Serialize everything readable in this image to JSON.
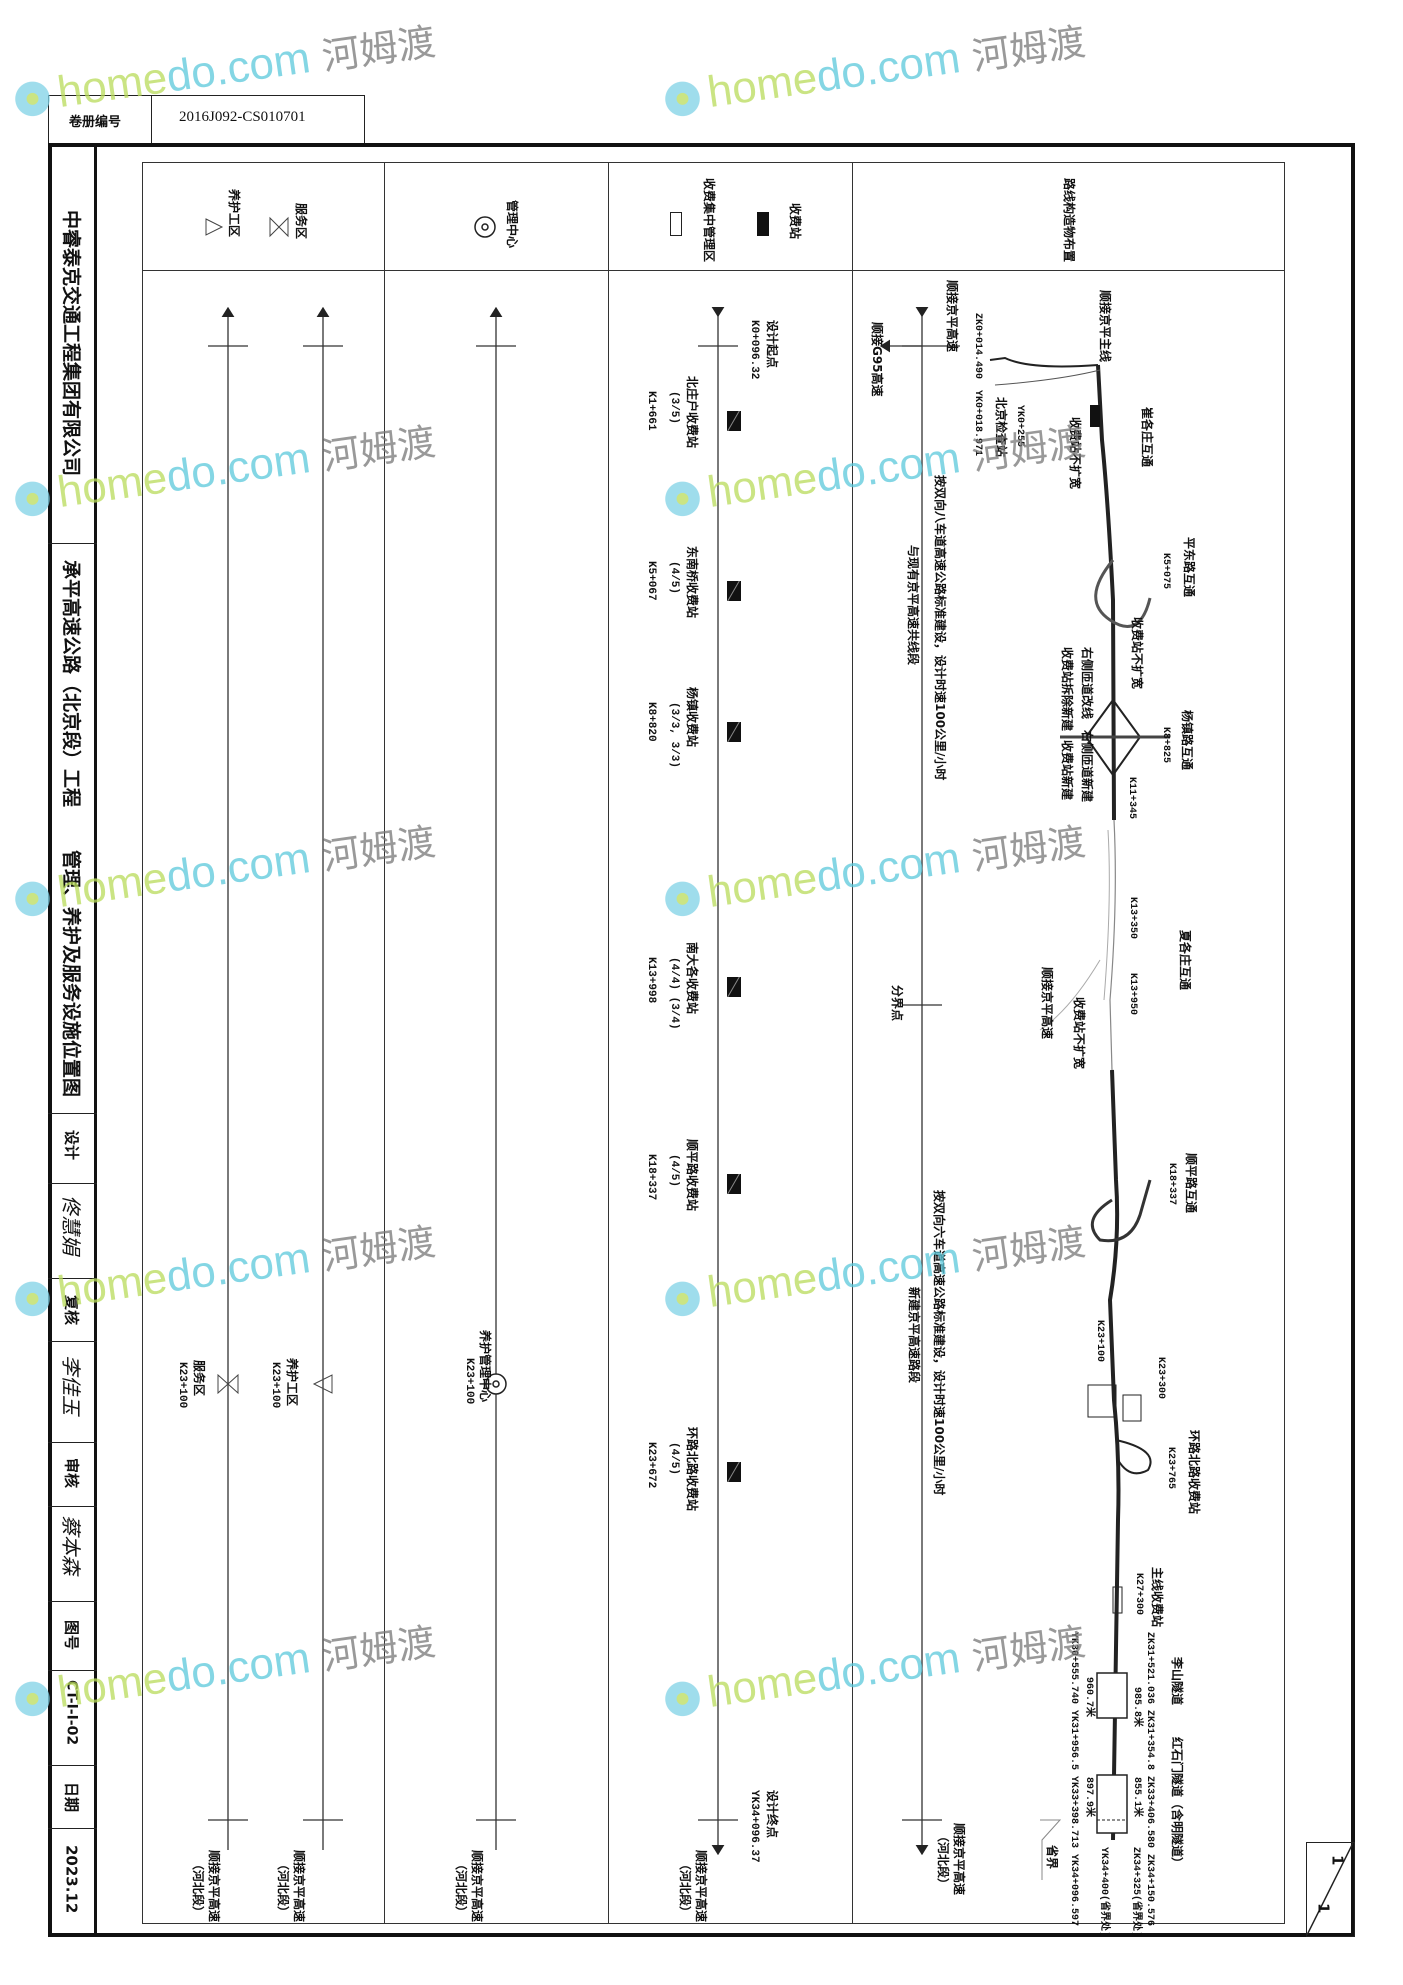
{
  "header_tab": {
    "label": "卷册编号",
    "value": "2016J092-CS010701"
  },
  "title_block": {
    "company": "中睿泰克交通工程集团有限公司",
    "project": "承平高速公路（北京段）工程",
    "drawing_title": "管理、养护及服务设施位置图",
    "design_label": "设计",
    "design_sig": "佟慧娟",
    "check_label": "复核",
    "check_sig": "李佳玉",
    "review_label": "审核",
    "review_sig": "蔡本森",
    "drawing_no_label": "图号",
    "drawing_no": "CT-Ⅰ-Ⅰ-02",
    "date_label": "日期",
    "date": "2023.12"
  },
  "sheet": {
    "current": "1",
    "total": "1"
  },
  "legend": {
    "service_area": "服务区",
    "maintenance_area": "养护工区",
    "management_center": "管理中心",
    "toll_station": "收费站",
    "toll_center": "收费集中管理区",
    "route_structures": "路线构造物布置"
  },
  "columns": {
    "service": {
      "items": [
        {
          "label": "服务区",
          "station": "K23+100"
        }
      ],
      "maintenance": [
        {
          "label": "养护工区",
          "station": "K23+100"
        }
      ],
      "end_label": "顺接京平高速",
      "end_sub": "（河北段）"
    },
    "management": {
      "items": [
        {
          "label": "养护管理中心",
          "station": "K23+100"
        }
      ],
      "end_label": "顺接京平高速",
      "end_sub": "（河北段）"
    },
    "toll": {
      "start": {
        "label": "设计起点",
        "station": "K0+096.32"
      },
      "end": {
        "label": "设计终点",
        "station": "YK34+096.37"
      },
      "end_label": "顺接京平高速",
      "end_sub": "（河北段）",
      "stations": [
        {
          "name": "北庄户收费站",
          "lanes": "(3/5)",
          "station": "K1+661"
        },
        {
          "name": "东南桥收费站",
          "lanes": "(4/5)",
          "station": "K5+067"
        },
        {
          "name": "杨镇收费站",
          "lanes": "(3/3, 3/3)",
          "station": "K8+820"
        },
        {
          "name": "南大各收费站",
          "lanes": "(4/4) (3/4)",
          "station": "K13+998"
        },
        {
          "name": "顺平路收费站",
          "lanes": "(4/5)",
          "station": "K18+337"
        },
        {
          "name": "环路北路收费站",
          "lanes": "(4/5)",
          "station": "K23+672"
        }
      ]
    },
    "route": {
      "labels": {
        "main_connect": "顺接京平主线",
        "connect_jingping": "顺接京平高速",
        "zk_start": "ZK0+014.490",
        "yk_start": "YK0+018.971",
        "connect_g95": "顺接G95高速",
        "checkpoint": "北京检查站",
        "yk_255": "YK0+255",
        "toll_no_widen": "收费站不扩宽",
        "cuigezhuang": "崔各庄互通",
        "pingdong": "平东路互通",
        "k5075": "K5+075",
        "ramp_realign": "右侧匝道改线",
        "toll_rebuild": "收费站拆除新建",
        "yangzhen": "杨镇路互通",
        "k8825": "K8+825",
        "ramp_new": "右侧匝道新建",
        "toll_new": "收费站新建",
        "k11345": "K11+345",
        "xiagezhuang": "夏各庄互通",
        "k13350": "K13+350",
        "k13950": "K13+950",
        "boundary": "分界点",
        "eight_lane": "按双向八车道高速公路标准建设，设计时速100公里/小时",
        "shared_section": "与现有京平高速共线段",
        "shunping": "顺平路互通",
        "k18337": "K18+337",
        "six_lane": "按双向六车道高速公路标准建设，设计时速100公里/小时",
        "new_section": "新建京平高速路段",
        "k23100": "K23+100",
        "k23300": "K23+300",
        "huanlu": "环路北路收费站",
        "k23765": "K23+765",
        "main_toll": "主线收费站",
        "k27300": "K27+300",
        "lishan": "李山隧道",
        "hongshimen": "红石门隧道（含明隧道）",
        "zk_tunnel": "ZK31+521.036  ZK31+354.8  ZK33+406.580  ZK34+150.576",
        "yk_tunnel": "YK30+555.740  YK31+956.5  YK33+398.713  YK34+096.597",
        "len1r": "985.8米",
        "len1l": "960.7米",
        "len2r": "855.1米",
        "len2l": "897.9米",
        "zk_border": "ZK34+325(省界处)",
        "yk_border": "YK34+400(省界处)",
        "province": "省界",
        "end_label": "顺接京平高速",
        "end_sub": "（河北段）"
      }
    }
  },
  "watermark": "homedo.com 河姆渡"
}
